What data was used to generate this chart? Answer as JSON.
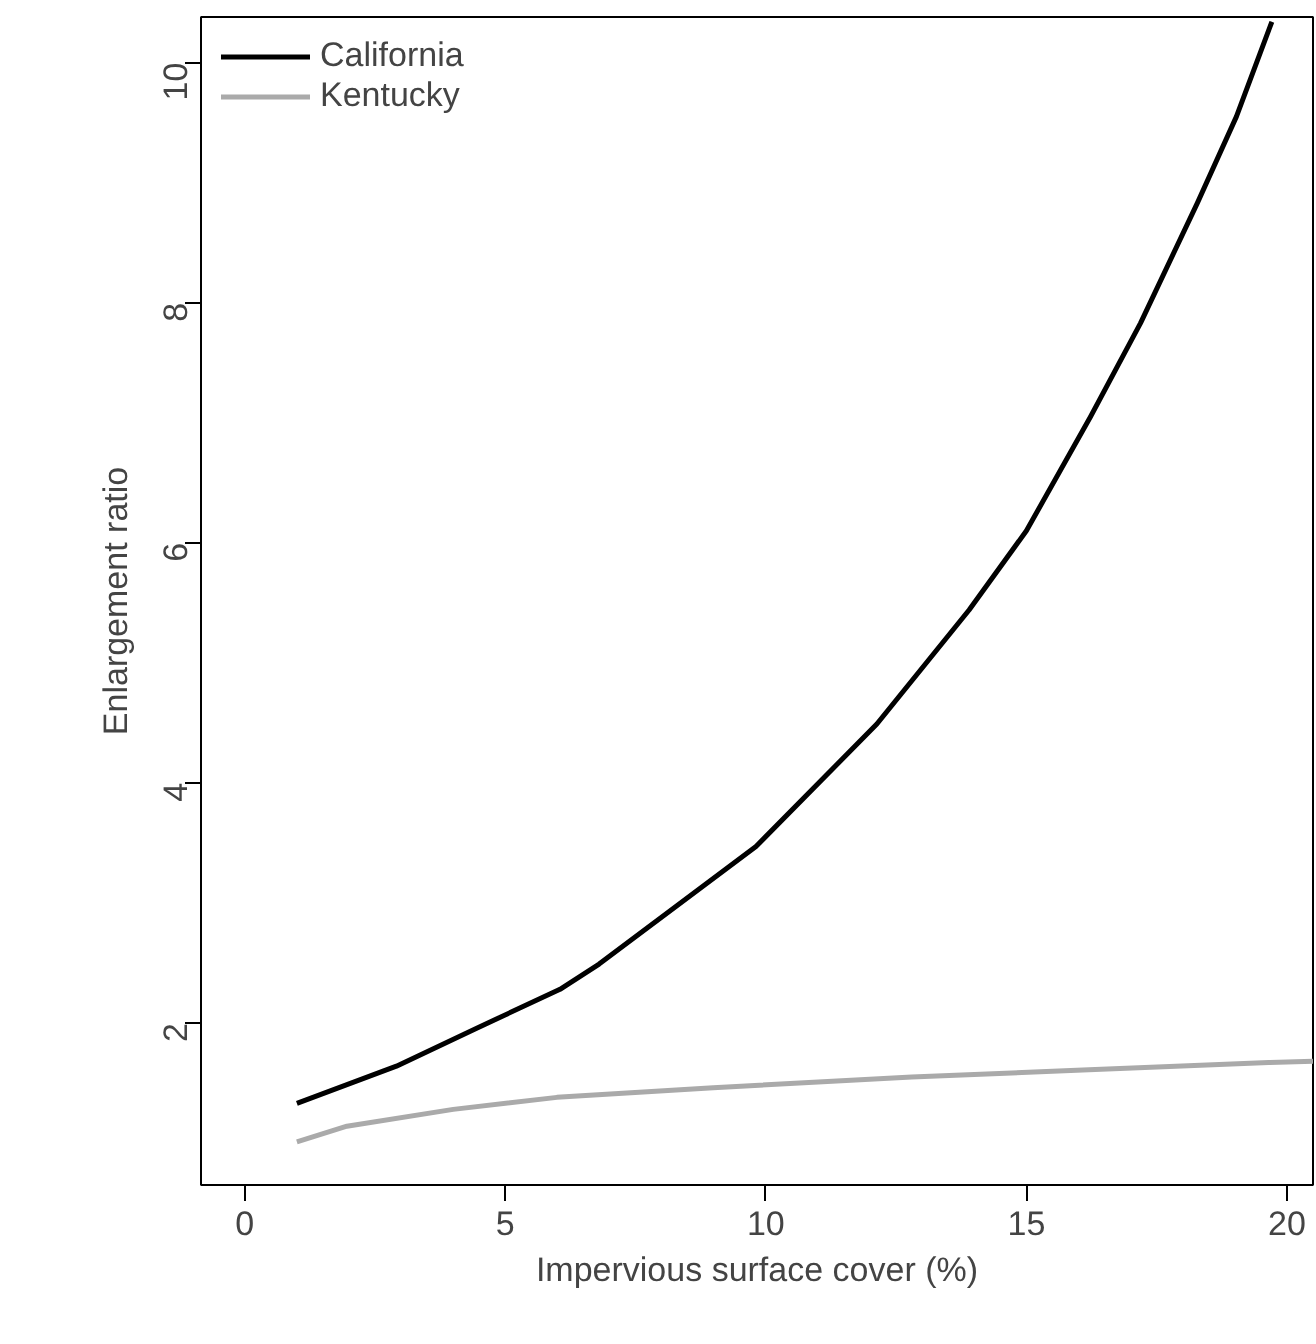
{
  "chart_data": {
    "type": "line",
    "xlabel": "Impervious surface cover (%)",
    "ylabel": "Enlargement ratio",
    "xlim": [
      -0.84,
      20.5
    ],
    "ylim": [
      0.65,
      10.38
    ],
    "xticks": [
      0,
      5,
      10,
      15,
      20
    ],
    "yticks": [
      2,
      4,
      6,
      8,
      10
    ],
    "grid": false,
    "legend": "top left",
    "line_style": "solid",
    "marker": "none",
    "series": [
      {
        "name": "California",
        "color": "#000000",
        "x": [
          1.0,
          2.91,
          4.42,
          6.05,
          6.8,
          9.81,
          12.13,
          13.9,
          15.0,
          16.23,
          17.19,
          18.28,
          19.03,
          19.71
        ],
        "values": [
          1.33,
          1.64,
          1.95,
          2.28,
          2.49,
          3.47,
          4.49,
          5.44,
          6.1,
          7.05,
          7.83,
          8.83,
          9.55,
          10.34
        ]
      },
      {
        "name": "Kentucky",
        "color": "#aaaaaa",
        "x": [
          1.0,
          1.96,
          4.0,
          5.99,
          8.99,
          12.8,
          16.2,
          19.65,
          20.5
        ],
        "values": [
          1.01,
          1.14,
          1.28,
          1.38,
          1.46,
          1.55,
          1.61,
          1.67,
          1.68
        ]
      }
    ]
  }
}
